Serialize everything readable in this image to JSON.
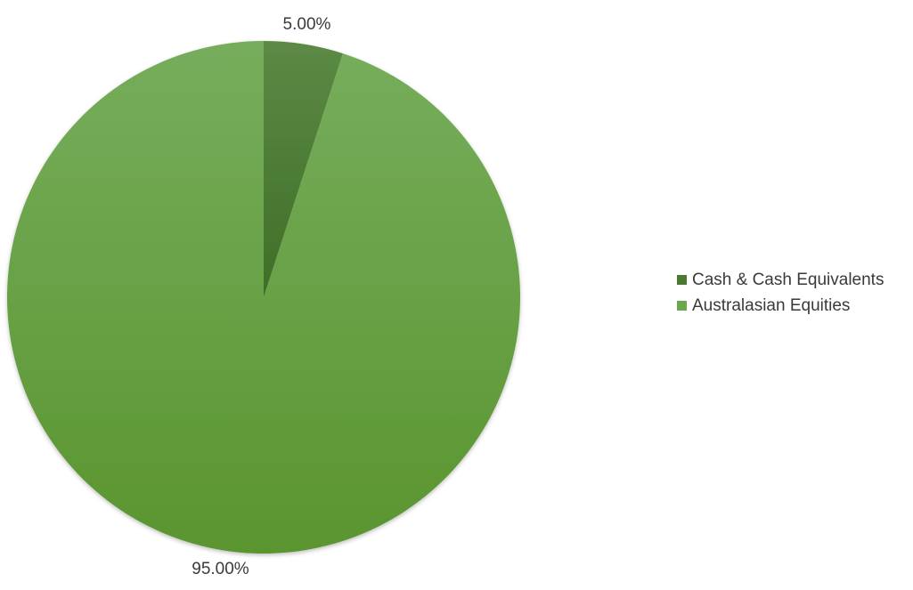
{
  "chart_data": {
    "type": "pie",
    "title": "",
    "slices": [
      {
        "label": "Cash & Cash Equivalents",
        "value": 5.0,
        "value_label": "5.00%",
        "color": "#4a7a31"
      },
      {
        "label": "Australasian Equities",
        "value": 95.0,
        "value_label": "95.00%",
        "color": "#6aa84f"
      }
    ],
    "start_angle_deg": 0,
    "direction": "clockwise",
    "legend_position": "right",
    "data_labels": "outside"
  }
}
